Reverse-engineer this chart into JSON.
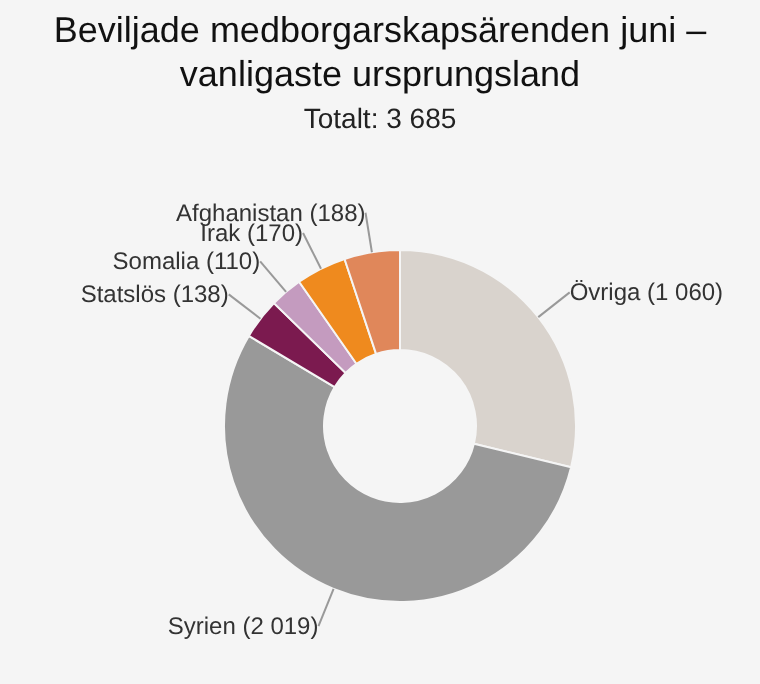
{
  "chart_data": {
    "type": "donut",
    "title": "Beviljade medborgarskapsärenden juni – vanligaste ursprungsland",
    "subtitle": "Totalt: 3 685",
    "categories": [
      "Övriga",
      "Syrien",
      "Statslös",
      "Somalia",
      "Irak",
      "Afghanistan"
    ],
    "values": [
      1060,
      2019,
      138,
      110,
      170,
      188
    ],
    "value_labels": [
      "(1 060)",
      "(2 019)",
      "(138)",
      "(110)",
      "(170)",
      "(188)"
    ],
    "colors": [
      "#d9d3cd",
      "#999999",
      "#7b1a4f",
      "#c49bbf",
      "#ef8a1e",
      "#e0875a"
    ],
    "legend": false
  }
}
